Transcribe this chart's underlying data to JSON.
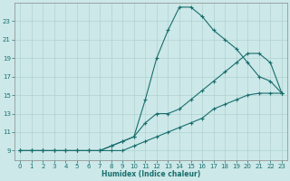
{
  "xlabel": "Humidex (Indice chaleur)",
  "background_color": "#cce8e8",
  "grid_color": "#aacccc",
  "line_color": "#1a6e6e",
  "xlim": [
    -0.5,
    23.5
  ],
  "ylim": [
    8.0,
    25.0
  ],
  "yticks": [
    9,
    11,
    13,
    15,
    17,
    19,
    21,
    23
  ],
  "xticks": [
    0,
    1,
    2,
    3,
    4,
    5,
    6,
    7,
    8,
    9,
    10,
    11,
    12,
    13,
    14,
    15,
    16,
    17,
    18,
    19,
    20,
    21,
    22,
    23
  ],
  "curve_top_x": [
    0,
    1,
    2,
    3,
    4,
    5,
    6,
    7,
    8,
    9,
    10,
    11,
    12,
    13,
    14,
    15,
    16,
    17,
    18,
    19,
    20,
    21,
    22,
    23
  ],
  "curve_top_y": [
    9,
    9,
    9,
    9,
    9,
    9,
    9,
    9,
    9.5,
    10,
    10.5,
    14.5,
    19,
    22.0,
    24.5,
    24.5,
    23.5,
    22,
    21,
    20,
    18.5,
    17.0,
    16.5,
    15.2
  ],
  "curve_mid_x": [
    0,
    1,
    2,
    3,
    4,
    5,
    6,
    7,
    8,
    9,
    10,
    11,
    12,
    13,
    14,
    15,
    16,
    17,
    18,
    19,
    20,
    21,
    22,
    23
  ],
  "curve_mid_y": [
    9,
    9,
    9,
    9,
    9,
    9,
    9,
    9,
    9.5,
    10,
    10.5,
    12.0,
    13,
    13.0,
    13.5,
    14.5,
    15.5,
    16.5,
    17.5,
    18.5,
    19.5,
    19.5,
    18.5,
    15.2
  ],
  "curve_bot_x": [
    0,
    1,
    2,
    3,
    4,
    5,
    6,
    7,
    8,
    9,
    10,
    11,
    12,
    13,
    14,
    15,
    16,
    17,
    18,
    19,
    20,
    21,
    22,
    23
  ],
  "curve_bot_y": [
    9,
    9,
    9,
    9,
    9,
    9,
    9,
    9,
    9,
    9,
    9.5,
    10.0,
    10.5,
    11.0,
    11.5,
    12.0,
    12.5,
    13.5,
    14.0,
    14.5,
    15.0,
    15.2,
    15.2,
    15.2
  ]
}
